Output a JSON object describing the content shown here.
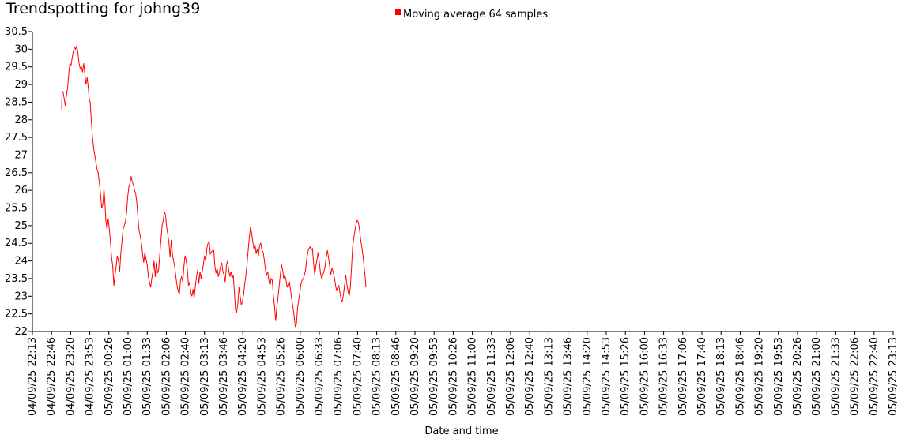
{
  "chart_data": {
    "type": "line",
    "title": "Trendspotting for johng39",
    "xlabel": "Date and time",
    "ylabel": "",
    "ylim": [
      22,
      30.5
    ],
    "y_ticks": [
      22,
      22.5,
      23,
      23.5,
      24,
      24.5,
      25,
      25.5,
      26,
      26.5,
      27,
      27.5,
      28,
      28.5,
      29,
      29.5,
      30,
      30.5
    ],
    "y_tick_labels": [
      "22",
      "22.5",
      "23",
      "23.5",
      "24",
      "24.5",
      "25",
      "25.5",
      "26",
      "26.5",
      "27",
      "27.5",
      "28",
      "28.5",
      "29",
      "29.5",
      "30",
      "30.5"
    ],
    "x_tick_labels": [
      "04/09/25 22:13",
      "04/09/25 22:46",
      "04/09/25 23:20",
      "04/09/25 23:53",
      "05/09/25 00:26",
      "05/09/25 01:00",
      "05/09/25 01:33",
      "05/09/25 02:06",
      "05/09/25 02:40",
      "05/09/25 03:13",
      "05/09/25 03:46",
      "05/09/25 04:20",
      "05/09/25 04:53",
      "05/09/25 05:26",
      "05/09/25 06:00",
      "05/09/25 06:33",
      "05/09/25 07:06",
      "05/09/25 07:40",
      "05/09/25 08:13",
      "05/09/25 08:46",
      "05/09/25 09:20",
      "05/09/25 09:53",
      "05/09/25 10:26",
      "05/09/25 11:00",
      "05/09/25 11:33",
      "05/09/25 12:06",
      "05/09/25 12:40",
      "05/09/25 13:13",
      "05/09/25 13:46",
      "05/09/25 14:20",
      "05/09/25 14:53",
      "05/09/25 15:26",
      "05/09/25 16:00",
      "05/09/25 16:33",
      "05/09/25 17:06",
      "05/09/25 17:40",
      "05/09/25 18:13",
      "05/09/25 18:46",
      "05/09/25 19:20",
      "05/09/25 19:53",
      "05/09/25 20:26",
      "05/09/25 21:00",
      "05/09/25 21:33",
      "05/09/25 22:06",
      "05/09/25 22:40",
      "05/09/25 23:13"
    ],
    "legend": {
      "label": "Moving average 64 samples",
      "color": "#ff0000",
      "placement": "top-center"
    },
    "grid": false,
    "series": [
      {
        "name": "Moving average 64 samples",
        "color": "#ff0000",
        "points": [
          [
            1.53,
            28.3
          ],
          [
            1.55,
            28.8
          ],
          [
            1.6,
            28.8
          ],
          [
            1.66,
            28.6
          ],
          [
            1.72,
            28.4
          ],
          [
            1.78,
            28.7
          ],
          [
            1.84,
            28.9
          ],
          [
            1.9,
            29.3
          ],
          [
            1.96,
            29.6
          ],
          [
            2.02,
            29.55
          ],
          [
            2.08,
            29.75
          ],
          [
            2.14,
            29.95
          ],
          [
            2.2,
            30.05
          ],
          [
            2.26,
            30.0
          ],
          [
            2.32,
            30.1
          ],
          [
            2.38,
            29.9
          ],
          [
            2.44,
            29.6
          ],
          [
            2.5,
            29.45
          ],
          [
            2.56,
            29.5
          ],
          [
            2.62,
            29.35
          ],
          [
            2.68,
            29.6
          ],
          [
            2.74,
            29.3
          ],
          [
            2.8,
            29.0
          ],
          [
            2.86,
            29.2
          ],
          [
            2.92,
            28.9
          ],
          [
            2.98,
            28.55
          ],
          [
            3.02,
            28.5
          ],
          [
            3.08,
            28.0
          ],
          [
            3.14,
            27.5
          ],
          [
            3.2,
            27.2
          ],
          [
            3.26,
            27.0
          ],
          [
            3.32,
            26.8
          ],
          [
            3.38,
            26.6
          ],
          [
            3.44,
            26.5
          ],
          [
            3.5,
            26.2
          ],
          [
            3.56,
            25.9
          ],
          [
            3.62,
            25.5
          ],
          [
            3.68,
            25.6
          ],
          [
            3.74,
            26.05
          ],
          [
            3.78,
            25.75
          ],
          [
            3.84,
            25.15
          ],
          [
            3.9,
            24.9
          ],
          [
            3.96,
            25.2
          ],
          [
            4.02,
            24.9
          ],
          [
            4.08,
            24.55
          ],
          [
            4.14,
            24.1
          ],
          [
            4.2,
            23.85
          ],
          [
            4.26,
            23.3
          ],
          [
            4.32,
            23.6
          ],
          [
            4.38,
            23.85
          ],
          [
            4.44,
            24.15
          ],
          [
            4.5,
            24.0
          ],
          [
            4.56,
            23.7
          ],
          [
            4.62,
            24.2
          ],
          [
            4.68,
            24.55
          ],
          [
            4.74,
            24.9
          ],
          [
            4.8,
            25.0
          ],
          [
            4.86,
            25.1
          ],
          [
            4.92,
            25.35
          ],
          [
            4.98,
            25.8
          ],
          [
            5.04,
            26.1
          ],
          [
            5.1,
            26.2
          ],
          [
            5.16,
            26.4
          ],
          [
            5.22,
            26.25
          ],
          [
            5.28,
            26.15
          ],
          [
            5.34,
            26.0
          ],
          [
            5.4,
            25.9
          ],
          [
            5.46,
            25.65
          ],
          [
            5.52,
            25.2
          ],
          [
            5.58,
            24.85
          ],
          [
            5.64,
            24.7
          ],
          [
            5.7,
            24.5
          ],
          [
            5.76,
            24.2
          ],
          [
            5.82,
            23.95
          ],
          [
            5.88,
            24.25
          ],
          [
            5.94,
            24.05
          ],
          [
            6.0,
            23.9
          ],
          [
            6.06,
            23.55
          ],
          [
            6.12,
            23.4
          ],
          [
            6.18,
            23.25
          ],
          [
            6.24,
            23.5
          ],
          [
            6.3,
            23.7
          ],
          [
            6.36,
            24.0
          ],
          [
            6.42,
            23.55
          ],
          [
            6.48,
            23.95
          ],
          [
            6.54,
            23.65
          ],
          [
            6.6,
            23.75
          ],
          [
            6.66,
            24.2
          ],
          [
            6.72,
            24.6
          ],
          [
            6.78,
            25.0
          ],
          [
            6.84,
            25.15
          ],
          [
            6.9,
            25.4
          ],
          [
            6.96,
            25.3
          ],
          [
            7.02,
            24.95
          ],
          [
            7.08,
            24.75
          ],
          [
            7.14,
            24.5
          ],
          [
            7.2,
            24.1
          ],
          [
            7.26,
            24.6
          ],
          [
            7.32,
            24.2
          ],
          [
            7.38,
            24.0
          ],
          [
            7.44,
            23.85
          ],
          [
            7.5,
            23.55
          ],
          [
            7.56,
            23.3
          ],
          [
            7.62,
            23.15
          ],
          [
            7.68,
            23.05
          ],
          [
            7.74,
            23.45
          ],
          [
            7.8,
            23.55
          ],
          [
            7.86,
            23.4
          ],
          [
            7.92,
            23.85
          ],
          [
            7.98,
            24.15
          ],
          [
            8.04,
            24.0
          ],
          [
            8.1,
            23.75
          ],
          [
            8.16,
            23.3
          ],
          [
            8.22,
            23.4
          ],
          [
            8.28,
            23.1
          ],
          [
            8.34,
            23.0
          ],
          [
            8.4,
            23.2
          ],
          [
            8.46,
            22.95
          ],
          [
            8.52,
            23.3
          ],
          [
            8.58,
            23.55
          ],
          [
            8.64,
            23.75
          ],
          [
            8.7,
            23.35
          ],
          [
            8.76,
            23.7
          ],
          [
            8.82,
            23.5
          ],
          [
            8.88,
            23.7
          ],
          [
            8.94,
            23.9
          ],
          [
            9.0,
            24.15
          ],
          [
            9.06,
            24.0
          ],
          [
            9.12,
            24.35
          ],
          [
            9.18,
            24.5
          ],
          [
            9.24,
            24.55
          ],
          [
            9.3,
            24.2
          ],
          [
            9.36,
            24.25
          ],
          [
            9.42,
            24.3
          ],
          [
            9.48,
            24.3
          ],
          [
            9.54,
            23.85
          ],
          [
            9.6,
            23.65
          ],
          [
            9.66,
            23.8
          ],
          [
            9.72,
            23.55
          ],
          [
            9.78,
            23.7
          ],
          [
            9.84,
            23.85
          ],
          [
            9.9,
            23.95
          ],
          [
            9.96,
            23.7
          ],
          [
            10.02,
            23.6
          ],
          [
            10.08,
            23.4
          ],
          [
            10.14,
            23.85
          ],
          [
            10.2,
            24.0
          ],
          [
            10.26,
            23.75
          ],
          [
            10.32,
            23.55
          ],
          [
            10.38,
            23.7
          ],
          [
            10.44,
            23.5
          ],
          [
            10.5,
            23.6
          ],
          [
            10.56,
            23.1
          ],
          [
            10.62,
            22.6
          ],
          [
            10.68,
            22.55
          ],
          [
            10.74,
            22.8
          ],
          [
            10.8,
            23.25
          ],
          [
            10.86,
            23.0
          ],
          [
            10.92,
            22.75
          ],
          [
            10.98,
            22.85
          ],
          [
            11.04,
            23.05
          ],
          [
            11.1,
            23.35
          ],
          [
            11.16,
            23.6
          ],
          [
            11.22,
            23.9
          ],
          [
            11.28,
            24.3
          ],
          [
            11.34,
            24.65
          ],
          [
            11.4,
            24.95
          ],
          [
            11.46,
            24.8
          ],
          [
            11.52,
            24.55
          ],
          [
            11.58,
            24.35
          ],
          [
            11.64,
            24.45
          ],
          [
            11.7,
            24.2
          ],
          [
            11.76,
            24.35
          ],
          [
            11.82,
            24.15
          ],
          [
            11.88,
            24.45
          ],
          [
            11.94,
            24.5
          ],
          [
            12.0,
            24.3
          ],
          [
            12.06,
            24.25
          ],
          [
            12.12,
            24.05
          ],
          [
            12.18,
            23.75
          ],
          [
            12.24,
            23.6
          ],
          [
            12.3,
            23.7
          ],
          [
            12.36,
            23.45
          ],
          [
            12.42,
            23.3
          ],
          [
            12.48,
            23.5
          ],
          [
            12.54,
            23.45
          ],
          [
            12.6,
            23.0
          ],
          [
            12.66,
            22.7
          ],
          [
            12.72,
            22.3
          ],
          [
            12.78,
            22.7
          ],
          [
            12.84,
            22.95
          ],
          [
            12.9,
            23.3
          ],
          [
            12.96,
            23.6
          ],
          [
            13.02,
            23.9
          ],
          [
            13.08,
            23.75
          ],
          [
            13.14,
            23.5
          ],
          [
            13.2,
            23.6
          ],
          [
            13.26,
            23.45
          ],
          [
            13.32,
            23.25
          ],
          [
            13.38,
            23.35
          ],
          [
            13.44,
            23.4
          ],
          [
            13.5,
            23.15
          ],
          [
            13.56,
            22.9
          ],
          [
            13.62,
            22.7
          ],
          [
            13.68,
            22.45
          ],
          [
            13.74,
            22.15
          ],
          [
            13.8,
            22.2
          ],
          [
            13.86,
            22.65
          ],
          [
            13.92,
            22.9
          ],
          [
            13.98,
            23.1
          ],
          [
            14.04,
            23.35
          ],
          [
            14.1,
            23.45
          ],
          [
            14.16,
            23.5
          ],
          [
            14.22,
            23.6
          ],
          [
            14.28,
            23.75
          ],
          [
            14.34,
            24.05
          ],
          [
            14.4,
            24.25
          ],
          [
            14.46,
            24.35
          ],
          [
            14.52,
            24.4
          ],
          [
            14.58,
            24.3
          ],
          [
            14.64,
            24.35
          ],
          [
            14.7,
            23.95
          ],
          [
            14.76,
            23.6
          ],
          [
            14.82,
            23.85
          ],
          [
            14.88,
            24.05
          ],
          [
            14.94,
            24.25
          ],
          [
            15.0,
            23.95
          ],
          [
            15.06,
            23.65
          ],
          [
            15.12,
            23.5
          ],
          [
            15.18,
            23.6
          ],
          [
            15.24,
            23.7
          ],
          [
            15.3,
            23.85
          ],
          [
            15.36,
            24.1
          ],
          [
            15.42,
            24.3
          ],
          [
            15.48,
            24.1
          ],
          [
            15.54,
            23.85
          ],
          [
            15.6,
            23.6
          ],
          [
            15.66,
            23.8
          ],
          [
            15.72,
            23.7
          ],
          [
            15.78,
            23.55
          ],
          [
            15.84,
            23.35
          ],
          [
            15.9,
            23.15
          ],
          [
            15.96,
            23.25
          ],
          [
            16.02,
            23.3
          ],
          [
            16.08,
            23.1
          ],
          [
            16.14,
            22.9
          ],
          [
            16.2,
            22.85
          ],
          [
            16.26,
            23.05
          ],
          [
            16.32,
            23.3
          ],
          [
            16.38,
            23.6
          ],
          [
            16.44,
            23.35
          ],
          [
            16.5,
            23.15
          ],
          [
            16.56,
            23.0
          ],
          [
            16.62,
            23.25
          ],
          [
            16.68,
            23.8
          ],
          [
            16.74,
            24.4
          ],
          [
            16.8,
            24.65
          ],
          [
            16.86,
            24.85
          ],
          [
            16.92,
            25.05
          ],
          [
            16.98,
            25.15
          ],
          [
            17.04,
            25.1
          ],
          [
            17.1,
            24.9
          ],
          [
            17.16,
            24.6
          ],
          [
            17.22,
            24.4
          ],
          [
            17.28,
            24.15
          ],
          [
            17.34,
            23.85
          ],
          [
            17.4,
            23.5
          ],
          [
            17.44,
            23.25
          ]
        ]
      }
    ]
  }
}
